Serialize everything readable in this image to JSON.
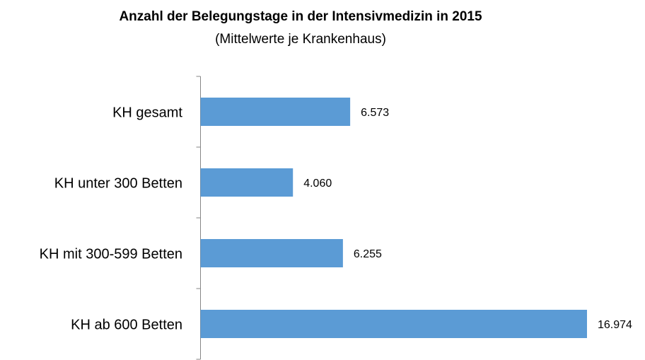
{
  "chart_data": {
    "type": "bar",
    "orientation": "horizontal",
    "title": "Anzahl der Belegungstage in der Intensivmedizin in 2015",
    "subtitle": "(Mittelwerte je Krankenhaus)",
    "categories": [
      "KH gesamt",
      "KH unter 300 Betten",
      "KH mit 300-599 Betten",
      "KH ab 600 Betten"
    ],
    "values": [
      6573,
      4060,
      6255,
      16974
    ],
    "value_labels": [
      "6.573",
      "4.060",
      "6.255",
      "16.974"
    ],
    "color": "#5b9bd5"
  }
}
